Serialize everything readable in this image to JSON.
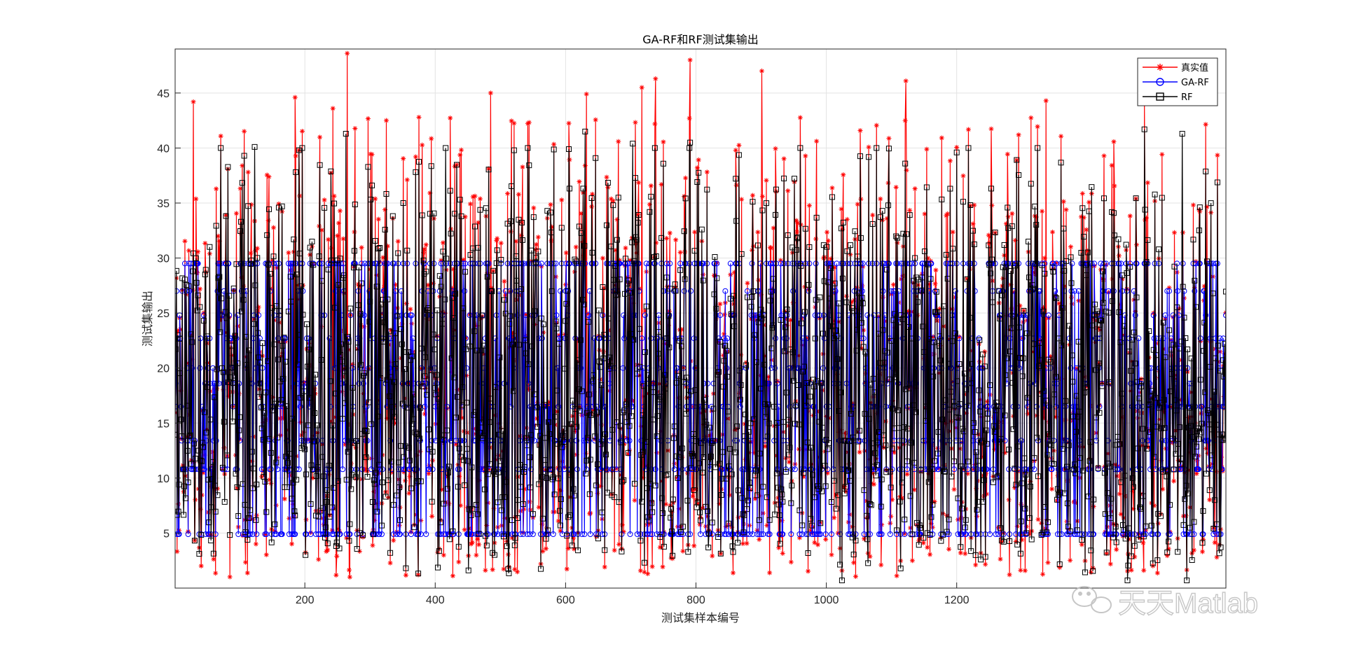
{
  "chart_data": {
    "type": "line",
    "title": "GA-RF和RF测试集输出",
    "xlabel": "测试集样本编号",
    "ylabel": "测试集输出",
    "xlim": [
      1,
      1613
    ],
    "ylim": [
      0,
      49
    ],
    "xticks": [
      200,
      400,
      600,
      800,
      1000,
      1200
    ],
    "yticks": [
      5,
      10,
      15,
      20,
      25,
      30,
      35,
      40,
      45
    ],
    "grid": true,
    "legend_position": "top-right",
    "n_points": 1613,
    "series": [
      {
        "name": "真实值",
        "color": "#ff0000",
        "marker": "asterisk"
      },
      {
        "name": "GA-RF",
        "color": "#0000ff",
        "marker": "circle",
        "levels": [
          4.9,
          10.8,
          13.4,
          16.5,
          18.6,
          20.0,
          22.7,
          24.8,
          27.0,
          29.5
        ]
      },
      {
        "name": "RF",
        "color": "#000000",
        "marker": "square"
      }
    ],
    "notable_points": {
      "max_true": {
        "x": 265,
        "y": 48.6
      },
      "high_true": [
        {
          "x": 29,
          "y": 44.2
        },
        {
          "x": 185,
          "y": 44.6
        },
        {
          "x": 243,
          "y": 43.6
        },
        {
          "x": 325,
          "y": 42.5
        },
        {
          "x": 485,
          "y": 45.0
        },
        {
          "x": 632,
          "y": 44.9
        },
        {
          "x": 717,
          "y": 45.5
        },
        {
          "x": 738,
          "y": 46.3
        },
        {
          "x": 791,
          "y": 48.0
        },
        {
          "x": 901,
          "y": 47.0
        },
        {
          "x": 1122,
          "y": 46.1
        },
        {
          "x": 1337,
          "y": 44.3
        },
        {
          "x": 1488,
          "y": 44.0
        }
      ],
      "high_rf": [
        {
          "x": 123,
          "y": 40.1
        },
        {
          "x": 263,
          "y": 41.3
        },
        {
          "x": 416,
          "y": 40.0
        },
        {
          "x": 630,
          "y": 41.5
        },
        {
          "x": 703,
          "y": 40.4
        },
        {
          "x": 791,
          "y": 40.5
        },
        {
          "x": 1488,
          "y": 41.7
        },
        {
          "x": 1546,
          "y": 41.3
        }
      ]
    }
  },
  "watermark": {
    "text": "天天Matlab",
    "icon": "wechat-icon"
  }
}
